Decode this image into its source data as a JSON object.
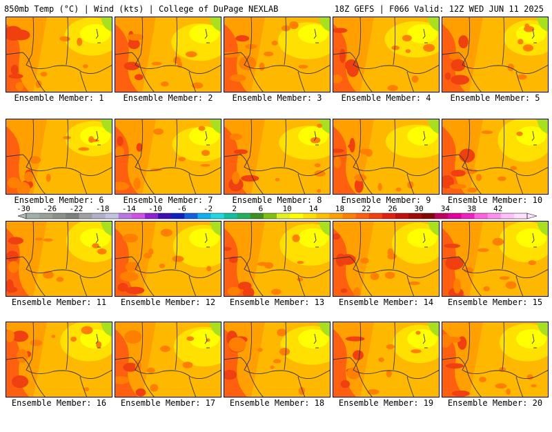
{
  "header": {
    "title_left": "850mb Temp (°C) | Wind (kts) | College of DuPage NEXLAB",
    "title_right": "18Z GEFS | F066 Valid: 12Z WED JUN 11 2025"
  },
  "member_label_prefix": "Ensemble Member:",
  "members": [
    1,
    2,
    3,
    4,
    5,
    6,
    7,
    8,
    9,
    10,
    11,
    12,
    13,
    14,
    15,
    16,
    17,
    18,
    19,
    20
  ],
  "colorbar": {
    "tick_labels": [
      "-30",
      "-26",
      "-22",
      "-18",
      "-14",
      "-10",
      "-6",
      "-2",
      "2",
      "6",
      "10",
      "14",
      "18",
      "22",
      "26",
      "30",
      "34",
      "38",
      "42"
    ],
    "colors": [
      "#a0b0a8",
      "#98a098",
      "#8a908a",
      "#7c807c",
      "#a0a0a4",
      "#b0b0c8",
      "#c0c4e0",
      "#b878e0",
      "#d050e8",
      "#9020d0",
      "#3c10b0",
      "#1020c0",
      "#1060e0",
      "#10b0f0",
      "#20d8e0",
      "#10c0a0",
      "#20b060",
      "#409020",
      "#80c010",
      "#e0f020",
      "#ffff00",
      "#ffe000",
      "#ffc000",
      "#ffa000",
      "#ff8000",
      "#ff6010",
      "#f04010",
      "#e02010",
      "#c01010",
      "#a00a0a",
      "#800808",
      "#c00060",
      "#e000a0",
      "#f020c0",
      "#ff60e0",
      "#ff90f0",
      "#ffc0f8",
      "#ffe0ff"
    ]
  }
}
